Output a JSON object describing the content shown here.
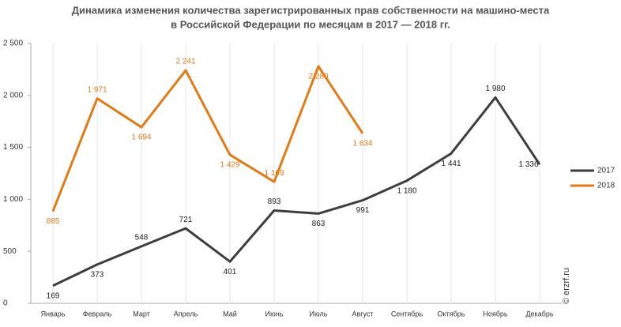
{
  "chart_data": {
    "type": "line",
    "title": [
      "Динамика изменения количества зарегистрированных прав собственности на машино-места",
      "в Российской Федерации по месяцам в 2017 — 2018 гг."
    ],
    "watermark": "© erzrf.ru",
    "categories": [
      "Январь",
      "Февраль",
      "Март",
      "Апрель",
      "Май",
      "Июнь",
      "Июль",
      "Август",
      "Сентябрь",
      "Октябрь",
      "Ноябрь",
      "Декабрь"
    ],
    "series": [
      {
        "name": "2017",
        "color": "#3d3d3d",
        "values": [
          169,
          373,
          548,
          721,
          401,
          893,
          863,
          991,
          1180,
          1441,
          1980,
          1336
        ],
        "value_labels": [
          "169",
          "373",
          "548",
          "721",
          "401",
          "893",
          "863",
          "991",
          "1 180",
          "1 441",
          "1 980",
          "1 336"
        ]
      },
      {
        "name": "2018",
        "color": "#e07b1a",
        "values": [
          885,
          1971,
          1694,
          2241,
          1429,
          1169,
          2280,
          1634,
          null,
          null,
          null,
          null
        ],
        "value_labels": [
          "885",
          "1 971",
          "1 694",
          "2 241",
          "1 429",
          "1 169",
          "2 280",
          "1 634",
          null,
          null,
          null,
          null
        ]
      }
    ],
    "ylim": [
      0,
      2500
    ],
    "yticks": [
      0,
      500,
      {
        "value": 1000,
        "label": "1 000"
      },
      {
        "value": 1500,
        "label": "1 500"
      },
      {
        "value": 2000,
        "label": "2 000"
      },
      {
        "value": 2500,
        "label": "2 500"
      }
    ],
    "grid": true,
    "legend": "right"
  }
}
